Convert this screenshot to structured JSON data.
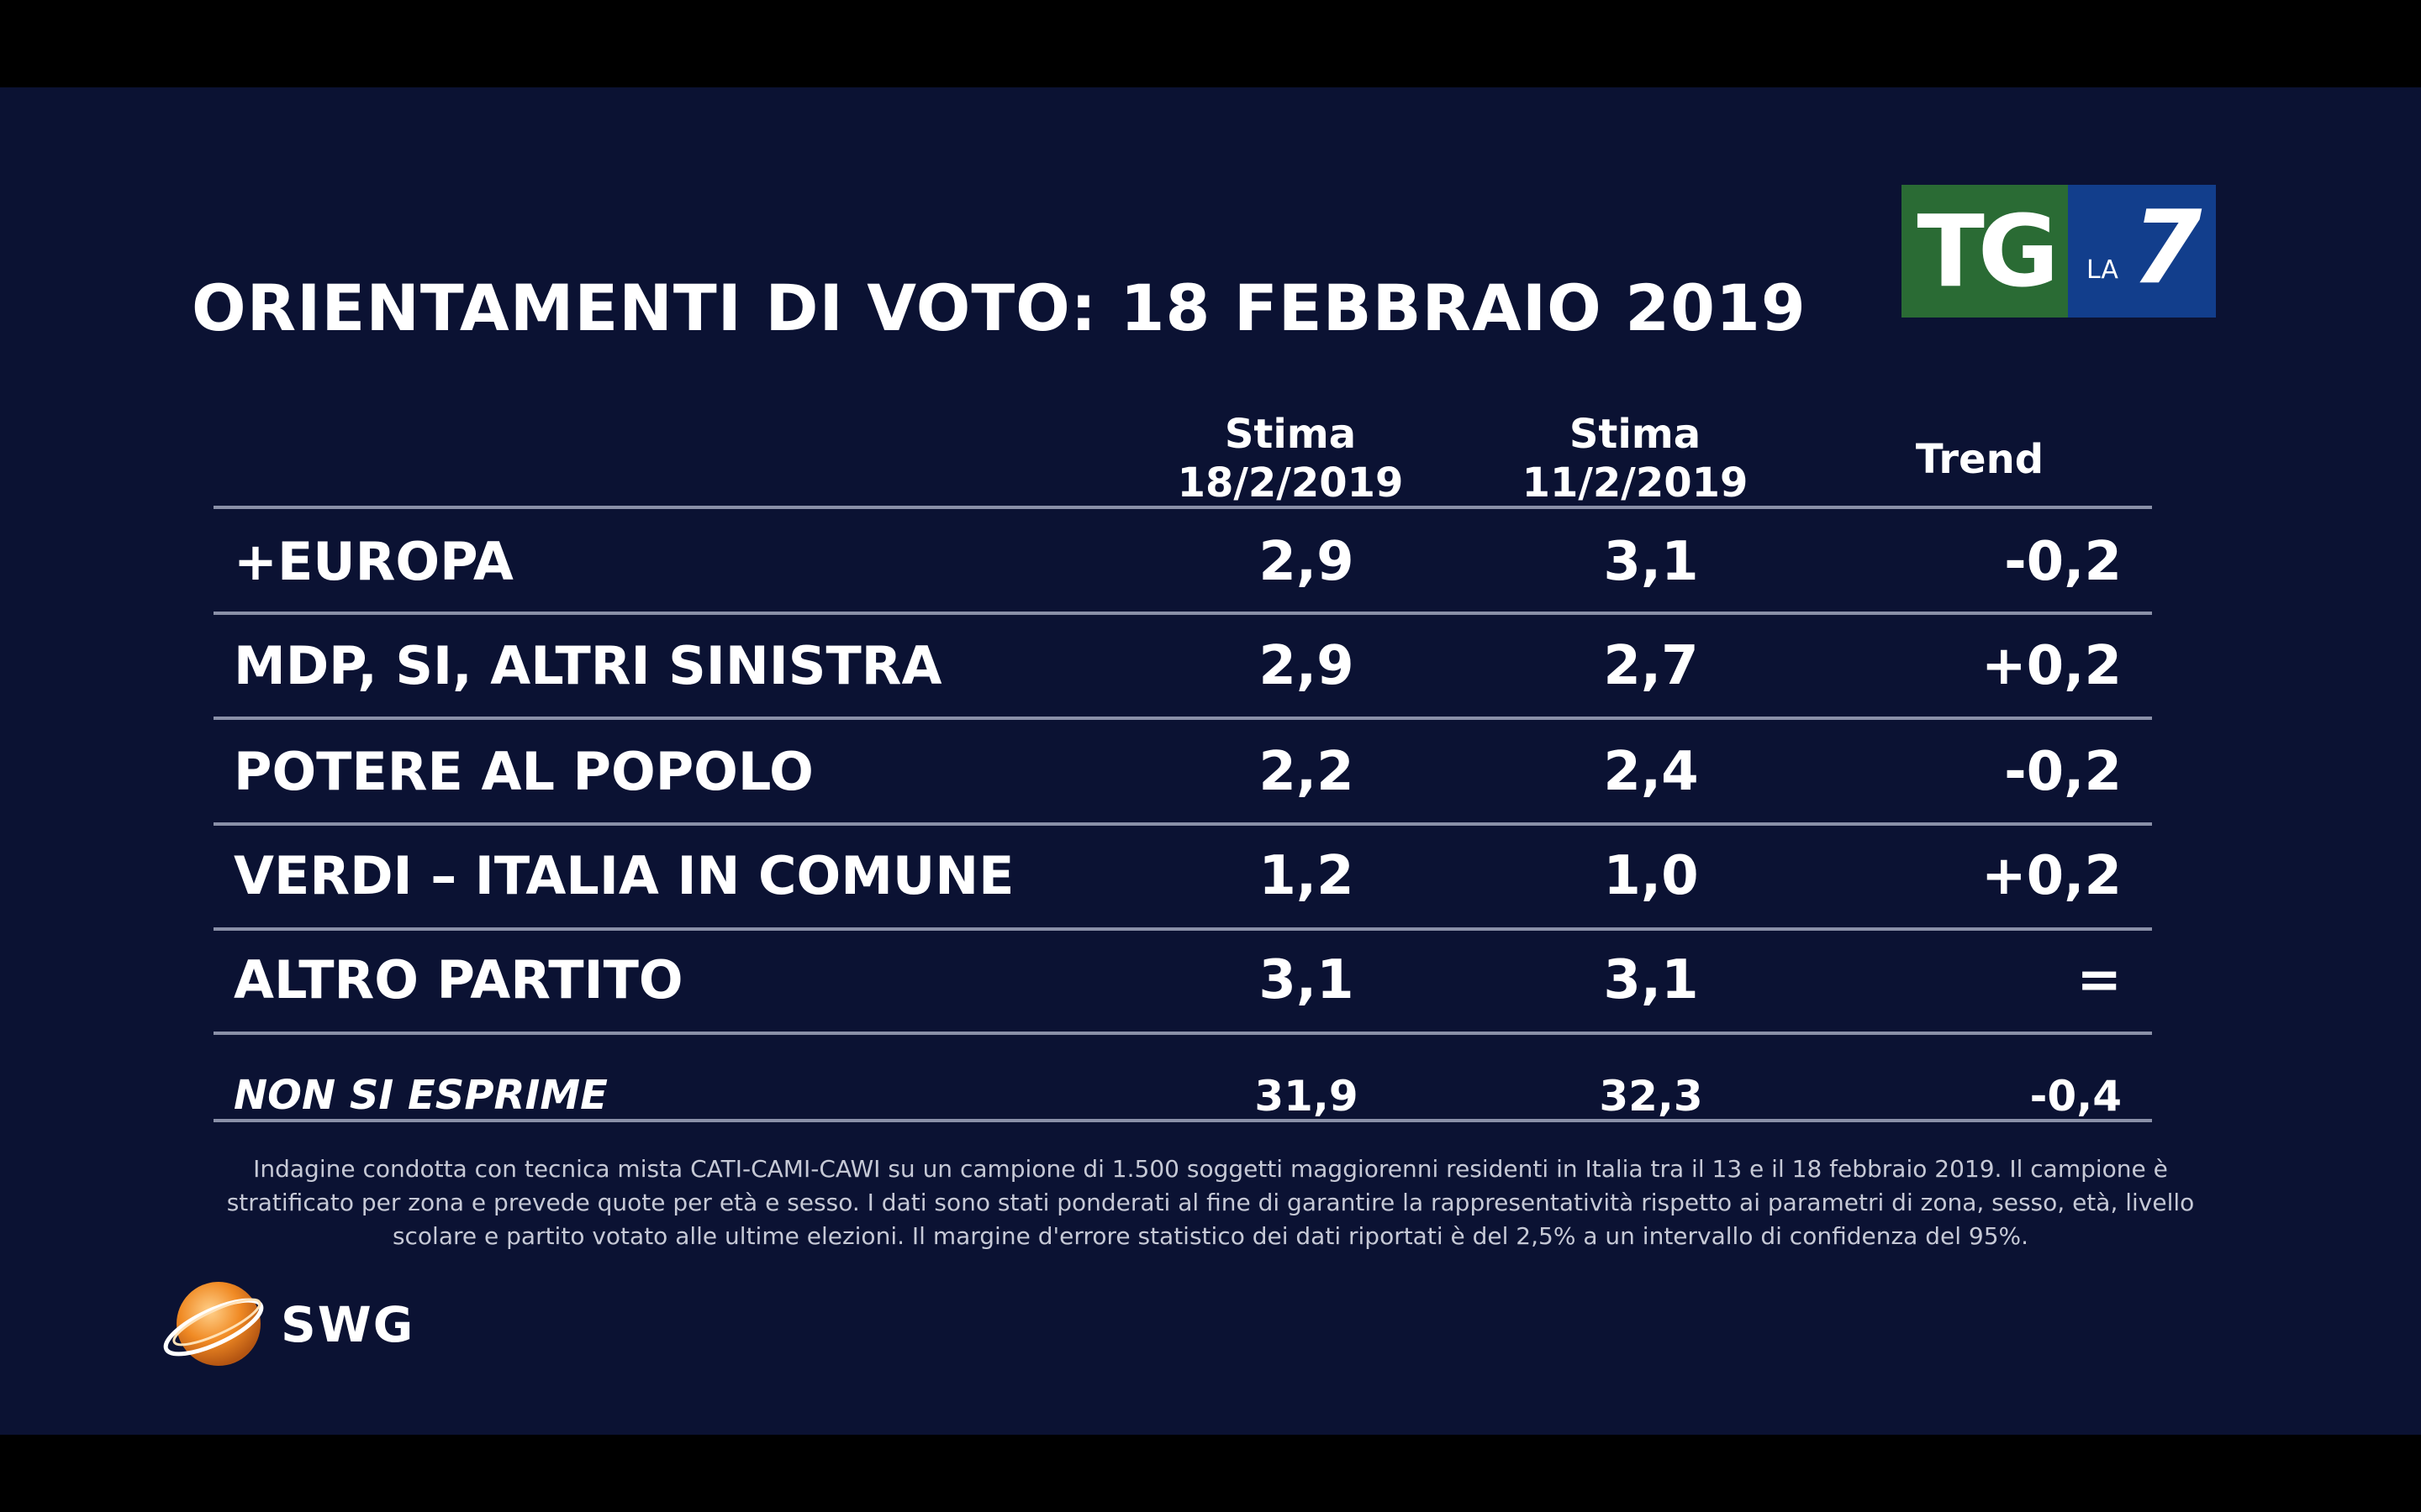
{
  "title": "ORIENTAMENTI DI VOTO: 18 FEBBRAIO 2019",
  "logo": {
    "tg": "TG",
    "la": "LA",
    "seven": "7"
  },
  "columns": {
    "c1": [
      "Stima",
      "18/2/2019"
    ],
    "c2": [
      "Stima",
      "11/2/2019"
    ],
    "c3": "Trend"
  },
  "rows": [
    {
      "party": "+EUROPA",
      "current": "2,9",
      "previous": "3,1",
      "trend": "-0,2"
    },
    {
      "party": "MDP, SI, ALTRI SINISTRA",
      "current": "2,9",
      "previous": "2,7",
      "trend": "+0,2"
    },
    {
      "party": "POTERE AL POPOLO",
      "current": "2,2",
      "previous": "2,4",
      "trend": "-0,2"
    },
    {
      "party": "VERDI – ITALIA IN COMUNE",
      "current": "1,2",
      "previous": "1,0",
      "trend": "+0,2"
    },
    {
      "party": "ALTRO PARTITO",
      "current": "3,1",
      "previous": "3,1",
      "trend": "="
    },
    {
      "party": "NON SI ESPRIME",
      "current": "31,9",
      "previous": "32,3",
      "trend": "-0,4"
    }
  ],
  "note": "Indagine condotta con tecnica mista CATI-CAMI-CAWI su un campione di 1.500 soggetti maggiorenni residenti in Italia tra il 13 e il 18 febbraio 2019. Il campione è stratificato per zona e prevede quote per età e sesso. I dati sono stati ponderati al fine di garantire la rappresentatività rispetto ai parametri di zona, sesso, età, livello scolare e partito votato alle ultime elezioni. Il margine d'errore statistico dei dati riportati è del 2,5% a un intervallo di confidenza del 95%.",
  "brand": "SWG",
  "colors": {
    "background": "#0b1233",
    "tg_green": "#2a6b34",
    "la7_blue": "#123e8c",
    "swg_orange": "#f08a24"
  }
}
